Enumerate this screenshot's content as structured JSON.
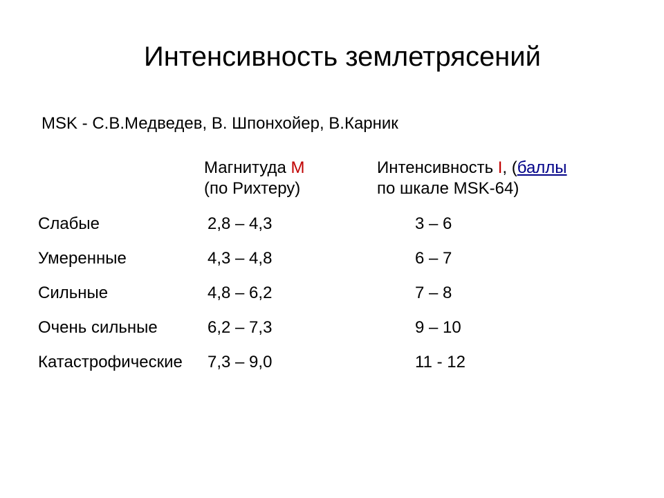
{
  "title": "Интенсивность землетрясений",
  "subtitle": "MSK - С.В.Медведев, В. Шпонхойер, В.Карник",
  "header": {
    "col2_line1": "Магнитуда ",
    "col2_m": "М",
    "col2_line2": " (по Рихтеру)",
    "col3_line1": "Интенсивность ",
    "col3_i": "I",
    "col3_line1_end": ", (",
    "col3_link": "баллы",
    "col3_line2_end": " по шкале MSK-64)"
  },
  "rows": [
    {
      "category": "Слабые",
      "magnitude": "2,8 – 4,3",
      "intensity": "3 – 6"
    },
    {
      "category": "Умеренные",
      "magnitude": "4,3 – 4,8",
      "intensity": "6 – 7"
    },
    {
      "category": "Сильные",
      "magnitude": "4,8 – 6,2",
      "intensity": "7 – 8"
    },
    {
      "category": "Очень сильные",
      "magnitude": "6,2 – 7,3",
      "intensity": "9 – 10"
    },
    {
      "category": "Катастрофические",
      "magnitude": "7,3 – 9,0",
      "intensity": "11 - 12"
    }
  ],
  "style": {
    "background_color": "#ffffff",
    "text_color": "#000000",
    "accent_color": "#c00000",
    "link_color": "#000088",
    "title_fontsize": 40,
    "body_fontsize": 24,
    "font_family": "Arial"
  }
}
